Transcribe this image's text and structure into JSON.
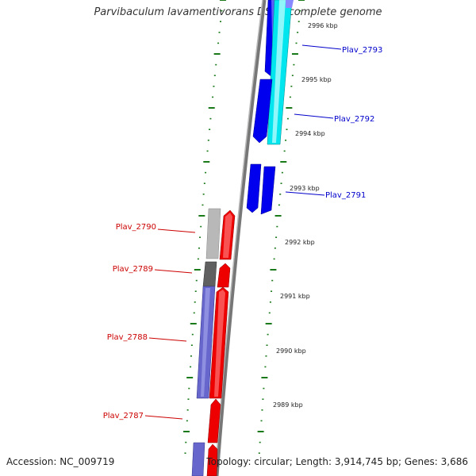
{
  "title": "Parvibaculum lavamentivorans DS-1, complete genome",
  "accession_text": "Accession: NC_009719",
  "topology_text": "Topology: circular; Length: 3,914,745 bp; Genes: 3,686",
  "scale_labels": [
    "2996 kbp",
    "2995 kbp",
    "2994 kbp",
    "2993 kbp",
    "2992 kbp",
    "2991 kbp",
    "2990 kbp",
    "2989 kbp"
  ],
  "genes_forward": [
    {
      "label": "Plav_2793",
      "color": "#0000cc"
    },
    {
      "label": "Plav_2792",
      "color": "#0000cc"
    },
    {
      "label": "Plav_2791",
      "color": "#0000cc"
    }
  ],
  "genes_reverse": [
    {
      "label": "Plav_2790",
      "color": "#cc0000"
    },
    {
      "label": "Plav_2789",
      "color": "#cc0000"
    },
    {
      "label": "Plav_2788",
      "color": "#cc0000"
    },
    {
      "label": "Plav_2787",
      "color": "#cc0000"
    }
  ],
  "colors": {
    "backbone": "#808080",
    "cds_forward": "#0000ee",
    "cds_forward_light": "#00e5ee",
    "cds_reverse": "#ee0000",
    "rna_purple": "#6666cc",
    "gray_feature": "#b0b0b0",
    "dark_gray_feature": "#606060",
    "tick": "#1a7a1a"
  }
}
